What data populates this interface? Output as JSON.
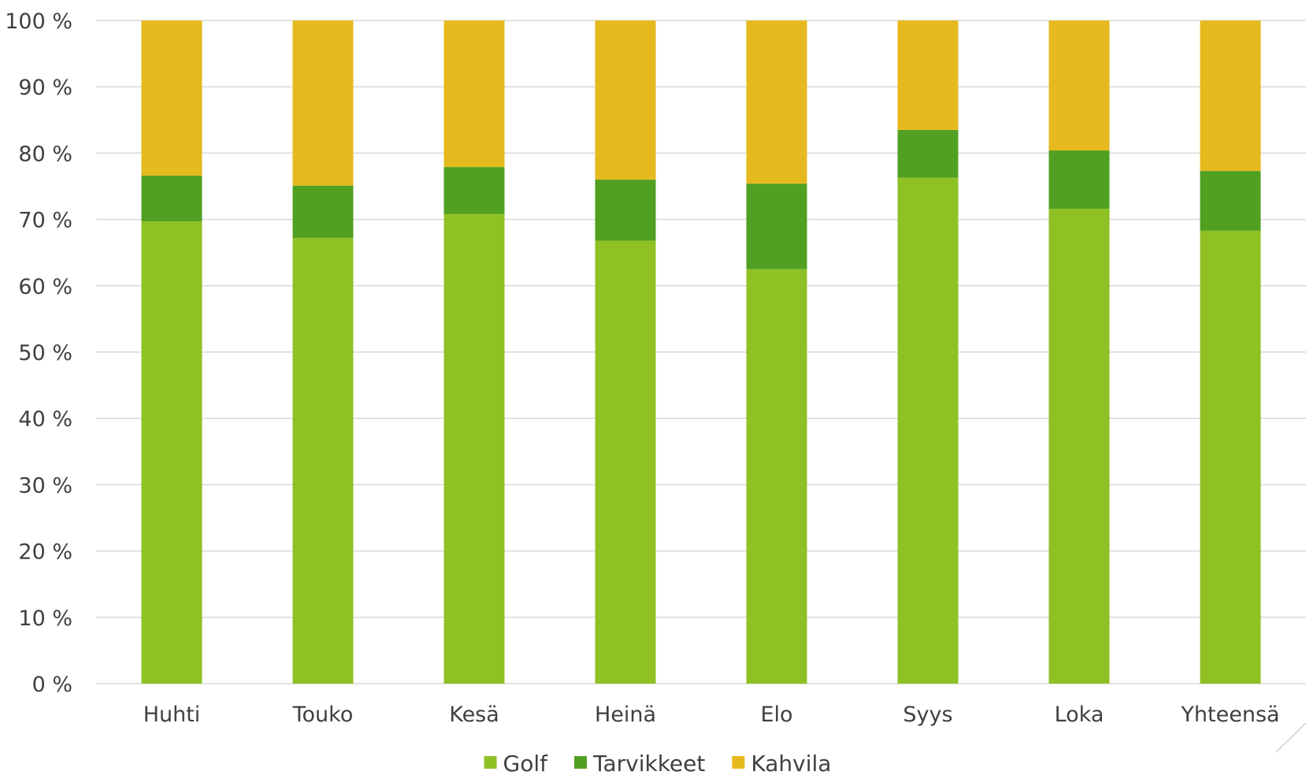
{
  "chart_data": {
    "type": "bar",
    "stacked": true,
    "percent_stacked": true,
    "categories": [
      "Huhti",
      "Touko",
      "Kesä",
      "Heinä",
      "Elo",
      "Syys",
      "Loka",
      "Yhteensä"
    ],
    "series": [
      {
        "name": "Golf",
        "color": "#8fc125",
        "values": [
          69.7,
          67.2,
          70.8,
          66.8,
          62.5,
          76.3,
          71.6,
          68.3
        ]
      },
      {
        "name": "Tarvikkeet",
        "color": "#52a022",
        "values": [
          6.9,
          7.9,
          7.1,
          9.2,
          12.9,
          7.2,
          8.8,
          9.0
        ]
      },
      {
        "name": "Kahvila",
        "color": "#e6ba1f",
        "values": [
          23.4,
          24.9,
          22.1,
          24.0,
          24.6,
          16.5,
          19.6,
          22.7
        ]
      }
    ],
    "y_ticks": [
      "0 %",
      "10 %",
      "20 %",
      "30 %",
      "40 %",
      "50 %",
      "60 %",
      "70 %",
      "80 %",
      "90 %",
      "100 %"
    ],
    "ylim": [
      0,
      100
    ],
    "grid": true,
    "legend_position": "bottom"
  }
}
